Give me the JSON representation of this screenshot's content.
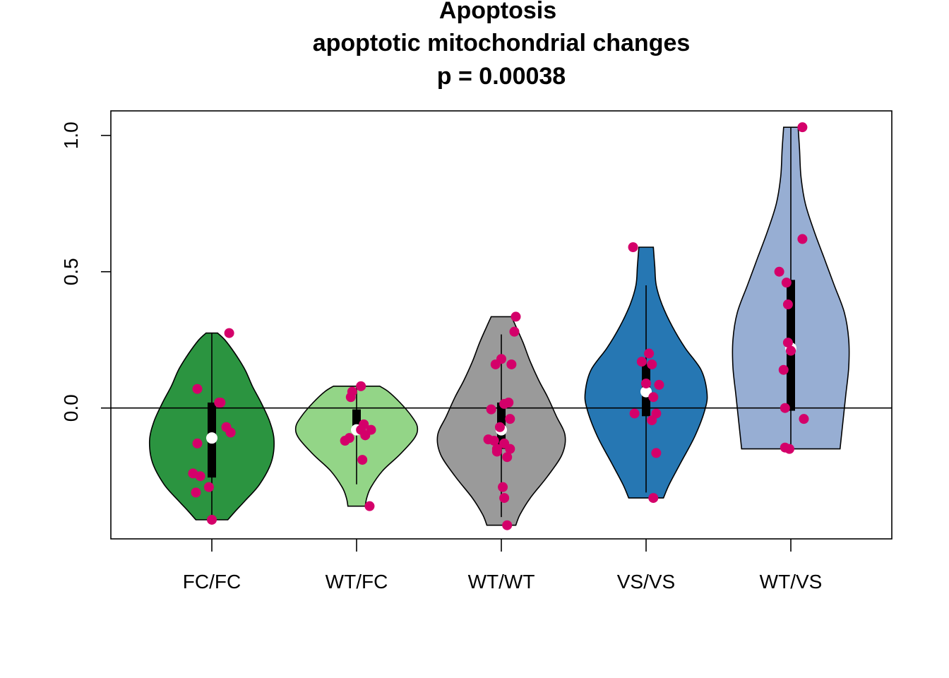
{
  "chart_data": {
    "type": "violin",
    "title_lines": [
      "Apoptosis",
      "apoptotic mitochondrial changes",
      "p = 0.00038"
    ],
    "xlabel": "",
    "ylabel": "",
    "ylim": [
      -0.48,
      1.09
    ],
    "yticks": [
      0.0,
      0.5,
      1.0
    ],
    "ytick_labels": [
      "0.0",
      "0.5",
      "1.0"
    ],
    "reference_line_y": 0.0,
    "grid": false,
    "point_color": "#d4006a",
    "median_marker_color": "#ffffff",
    "categories": [
      "FC/FC",
      "WT/FC",
      "WT/WT",
      "VS/VS",
      "WT/VS"
    ],
    "series": [
      {
        "color": "#2b9440",
        "min": -0.41,
        "max": 0.275,
        "q1": -0.255,
        "median": -0.11,
        "q3": 0.02,
        "whisker_low": -0.41,
        "whisker_high": 0.275,
        "density": [
          [
            -0.41,
            0.11
          ],
          [
            -0.38,
            0.16
          ],
          [
            -0.34,
            0.23
          ],
          [
            -0.28,
            0.33
          ],
          [
            -0.2,
            0.41
          ],
          [
            -0.12,
            0.43
          ],
          [
            -0.05,
            0.4
          ],
          [
            0.02,
            0.34
          ],
          [
            0.08,
            0.28
          ],
          [
            0.14,
            0.23
          ],
          [
            0.2,
            0.16
          ],
          [
            0.25,
            0.09
          ],
          [
            0.275,
            0.04
          ]
        ],
        "points": [
          [
            -0.1,
            0.07
          ],
          [
            0.05,
            0.02
          ],
          [
            0.06,
            0.02
          ],
          [
            0.1,
            -0.07
          ],
          [
            0.13,
            -0.09
          ],
          [
            -0.1,
            -0.13
          ],
          [
            -0.13,
            -0.24
          ],
          [
            -0.08,
            -0.25
          ],
          [
            -0.02,
            -0.29
          ],
          [
            -0.11,
            -0.31
          ],
          [
            0.0,
            -0.41
          ],
          [
            0.12,
            0.275
          ]
        ]
      },
      {
        "color": "#93d587",
        "min": -0.36,
        "max": 0.08,
        "q1": -0.09,
        "median": -0.08,
        "q3": -0.005,
        "whisker_low": -0.28,
        "whisker_high": 0.08,
        "density": [
          [
            -0.36,
            0.06
          ],
          [
            -0.33,
            0.07
          ],
          [
            -0.29,
            0.1
          ],
          [
            -0.23,
            0.18
          ],
          [
            -0.17,
            0.3
          ],
          [
            -0.11,
            0.4
          ],
          [
            -0.07,
            0.42
          ],
          [
            -0.03,
            0.38
          ],
          [
            0.02,
            0.3
          ],
          [
            0.06,
            0.22
          ],
          [
            0.08,
            0.16
          ]
        ],
        "points": [
          [
            0.03,
            0.08
          ],
          [
            -0.03,
            0.06
          ],
          [
            -0.04,
            0.04
          ],
          [
            0.05,
            -0.06
          ],
          [
            0.03,
            -0.08
          ],
          [
            0.1,
            -0.08
          ],
          [
            0.06,
            -0.1
          ],
          [
            -0.05,
            -0.11
          ],
          [
            -0.08,
            -0.12
          ],
          [
            0.04,
            -0.19
          ],
          [
            0.09,
            -0.36
          ]
        ]
      },
      {
        "color": "#9a9a9a",
        "min": -0.43,
        "max": 0.335,
        "q1": -0.15,
        "median": -0.08,
        "q3": 0.02,
        "whisker_low": -0.4,
        "whisker_high": 0.27,
        "density": [
          [
            -0.43,
            0.1
          ],
          [
            -0.39,
            0.13
          ],
          [
            -0.33,
            0.2
          ],
          [
            -0.25,
            0.32
          ],
          [
            -0.17,
            0.42
          ],
          [
            -0.1,
            0.44
          ],
          [
            -0.03,
            0.38
          ],
          [
            0.04,
            0.32
          ],
          [
            0.1,
            0.26
          ],
          [
            0.17,
            0.2
          ],
          [
            0.24,
            0.15
          ],
          [
            0.3,
            0.1
          ],
          [
            0.335,
            0.07
          ]
        ],
        "points": [
          [
            0.1,
            0.335
          ],
          [
            0.09,
            0.28
          ],
          [
            0.0,
            0.18
          ],
          [
            -0.04,
            0.16
          ],
          [
            0.07,
            0.16
          ],
          [
            0.05,
            0.02
          ],
          [
            0.02,
            0.015
          ],
          [
            -0.07,
            -0.005
          ],
          [
            0.06,
            -0.04
          ],
          [
            -0.01,
            -0.07
          ],
          [
            -0.09,
            -0.115
          ],
          [
            -0.05,
            -0.12
          ],
          [
            0.02,
            -0.13
          ],
          [
            -0.03,
            -0.15
          ],
          [
            0.06,
            -0.15
          ],
          [
            -0.03,
            -0.16
          ],
          [
            0.04,
            -0.18
          ],
          [
            0.01,
            -0.29
          ],
          [
            0.02,
            -0.33
          ],
          [
            0.04,
            -0.43
          ]
        ]
      },
      {
        "color": "#2677b3",
        "min": -0.33,
        "max": 0.59,
        "q1": -0.03,
        "median": 0.06,
        "q3": 0.16,
        "whisker_low": -0.31,
        "whisker_high": 0.45,
        "density": [
          [
            -0.33,
            0.12
          ],
          [
            -0.28,
            0.16
          ],
          [
            -0.2,
            0.24
          ],
          [
            -0.1,
            0.34
          ],
          [
            0.0,
            0.41
          ],
          [
            0.06,
            0.42
          ],
          [
            0.14,
            0.38
          ],
          [
            0.22,
            0.27
          ],
          [
            0.3,
            0.18
          ],
          [
            0.38,
            0.11
          ],
          [
            0.45,
            0.07
          ],
          [
            0.52,
            0.06
          ],
          [
            0.59,
            0.05
          ]
        ],
        "points": [
          [
            -0.09,
            0.59
          ],
          [
            0.02,
            0.2
          ],
          [
            -0.03,
            0.17
          ],
          [
            0.04,
            0.16
          ],
          [
            0.0,
            0.09
          ],
          [
            0.09,
            0.085
          ],
          [
            0.05,
            0.04
          ],
          [
            -0.08,
            -0.02
          ],
          [
            0.07,
            -0.02
          ],
          [
            0.04,
            -0.045
          ],
          [
            0.07,
            -0.165
          ],
          [
            0.05,
            -0.33
          ]
        ]
      },
      {
        "color": "#97aed3",
        "min": -0.15,
        "max": 1.03,
        "q1": -0.01,
        "median": 0.22,
        "q3": 0.47,
        "whisker_low": -0.15,
        "whisker_high": 1.03,
        "density": [
          [
            -0.15,
            0.34
          ],
          [
            -0.05,
            0.36
          ],
          [
            0.05,
            0.38
          ],
          [
            0.15,
            0.4
          ],
          [
            0.25,
            0.4
          ],
          [
            0.35,
            0.37
          ],
          [
            0.45,
            0.3
          ],
          [
            0.55,
            0.23
          ],
          [
            0.65,
            0.16
          ],
          [
            0.75,
            0.1
          ],
          [
            0.85,
            0.07
          ],
          [
            0.95,
            0.06
          ],
          [
            1.03,
            0.05
          ]
        ],
        "points": [
          [
            0.08,
            1.03
          ],
          [
            0.08,
            0.62
          ],
          [
            -0.08,
            0.5
          ],
          [
            -0.03,
            0.46
          ],
          [
            -0.02,
            0.38
          ],
          [
            -0.02,
            0.24
          ],
          [
            0.0,
            0.21
          ],
          [
            -0.05,
            0.14
          ],
          [
            -0.04,
            0.0
          ],
          [
            0.09,
            -0.04
          ],
          [
            -0.04,
            -0.145
          ],
          [
            -0.01,
            -0.15
          ]
        ]
      }
    ]
  }
}
